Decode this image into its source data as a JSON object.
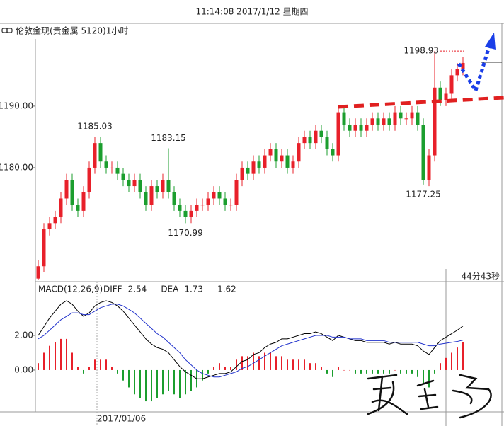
{
  "header": {
    "time": "11:14:08 2017/1/12 星期四"
  },
  "countdown": "44分43秒",
  "chart_data": [
    {
      "type": "candlestick",
      "title": "伦敦金现(贵金属 5120)1小时",
      "categories": [
        null,
        null,
        null,
        null,
        null,
        null,
        null,
        null,
        null,
        null,
        "2017/01/06",
        null,
        null,
        null,
        null,
        null,
        null,
        null,
        null,
        null,
        null,
        null,
        null,
        null,
        null,
        null,
        null,
        null,
        null,
        null,
        null,
        null,
        null,
        null,
        null,
        null,
        null,
        null,
        null,
        null,
        null,
        null,
        null,
        null,
        null,
        null,
        null,
        null,
        null,
        null,
        null,
        null,
        null,
        null,
        null,
        null,
        null,
        null,
        null,
        null,
        null,
        null,
        null,
        null,
        null,
        null,
        null,
        null,
        null,
        null,
        null,
        null,
        null,
        null,
        null,
        null
      ],
      "open": [
        1162,
        1164,
        1170,
        1171,
        1172,
        1175,
        1178,
        1174,
        1173,
        1176,
        1180,
        1184,
        1181,
        1180,
        1180,
        1179,
        1178,
        1177,
        1178,
        1176,
        1174,
        1177,
        1176,
        1178,
        1176,
        1174,
        1173,
        1172,
        1173,
        1174,
        1174,
        1175,
        1176,
        1175,
        1174,
        1174,
        1178,
        1180,
        1179,
        1181,
        1180,
        1182,
        1183,
        1181,
        1182,
        1180,
        1181,
        1184,
        1185,
        1184,
        1186,
        1185,
        1183,
        1182,
        1189,
        1187,
        1186,
        1187,
        1186,
        1187,
        1188,
        1187,
        1188,
        1187,
        1189,
        1188,
        1188,
        1189,
        1187,
        1178,
        1182,
        1193,
        1191,
        1192,
        1195,
        1196
      ],
      "high": [
        1165,
        1171,
        1172,
        1173,
        1176,
        1179,
        1179,
        1175,
        1177,
        1181,
        1185.03,
        1185,
        1182,
        1181,
        1181,
        1180,
        1179,
        1179,
        1179,
        1177,
        1178,
        1178,
        1179,
        1183.15,
        1177,
        1175,
        1174,
        1174,
        1175,
        1175,
        1176,
        1177,
        1177,
        1176,
        1175,
        1179,
        1181,
        1181,
        1182,
        1182,
        1183,
        1184,
        1184,
        1183,
        1183,
        1182,
        1185,
        1186,
        1186,
        1187,
        1187,
        1186,
        1184,
        1190,
        1190,
        1188,
        1188,
        1188,
        1188,
        1189,
        1189,
        1189,
        1189,
        1190,
        1190,
        1189,
        1190,
        1190,
        1188,
        1183,
        1198.93,
        1194,
        1193,
        1196,
        1197,
        1198
      ],
      "low": [
        1161.8,
        1163,
        1169,
        1170,
        1171,
        1174,
        1173,
        1172,
        1172,
        1175,
        1179,
        1180,
        1179,
        1179,
        1178,
        1177,
        1176,
        1176,
        1175,
        1173,
        1173,
        1175,
        1175,
        1175,
        1173,
        1172,
        1170.99,
        1171,
        1172,
        1173,
        1173,
        1174,
        1174,
        1173,
        1173,
        1173,
        1177,
        1178,
        1178,
        1179,
        1179,
        1181,
        1180,
        1180,
        1179,
        1179,
        1180,
        1183,
        1183,
        1183,
        1184,
        1182,
        1181,
        1181,
        1186,
        1185,
        1185,
        1185,
        1185,
        1186,
        1186,
        1186,
        1186,
        1186,
        1187,
        1187,
        1187,
        1186,
        1177.25,
        1177,
        1181,
        1190,
        1190,
        1191,
        1194,
        1195
      ],
      "close": [
        1164,
        1170,
        1171,
        1172,
        1175,
        1178,
        1174,
        1173,
        1176,
        1180,
        1184,
        1181,
        1180,
        1180,
        1179,
        1178,
        1177,
        1178,
        1176,
        1174,
        1177,
        1176,
        1178,
        1176,
        1174,
        1173,
        1172,
        1173,
        1174,
        1174,
        1175,
        1176,
        1175,
        1174,
        1174,
        1178,
        1180,
        1179,
        1181,
        1180,
        1182,
        1183,
        1181,
        1182,
        1180,
        1181,
        1184,
        1185,
        1184,
        1186,
        1185,
        1183,
        1182,
        1189,
        1187,
        1186,
        1187,
        1186,
        1187,
        1188,
        1187,
        1188,
        1187,
        1189,
        1188,
        1188,
        1189,
        1187,
        1178,
        1182,
        1193,
        1191,
        1192,
        1195,
        1196,
        1197
      ],
      "up_color": "#e8202a",
      "down_color": "#1b9e2e",
      "ylim": [
        1161.5,
        1200.9
      ],
      "yticks": [
        {
          "value": 1180,
          "label": "1180.00"
        },
        {
          "value": 1190,
          "label": "1190.00"
        }
      ]
    },
    {
      "type": "macd",
      "title": "MACD(12,26,9)",
      "series": [
        {
          "name": "DIFF",
          "color": "#000000",
          "values": [
            2.0,
            2.5,
            3.0,
            3.4,
            3.8,
            4.0,
            3.8,
            3.4,
            3.1,
            3.3,
            3.7,
            3.9,
            4.0,
            3.9,
            3.7,
            3.4,
            3.0,
            2.6,
            2.2,
            1.8,
            1.5,
            1.3,
            1.2,
            1.0,
            0.6,
            0.2,
            -0.1,
            -0.3,
            -0.5,
            -0.5,
            -0.4,
            -0.3,
            -0.2,
            -0.2,
            -0.1,
            0.2,
            0.5,
            0.6,
            0.9,
            1.0,
            1.3,
            1.5,
            1.6,
            1.8,
            1.8,
            1.9,
            2.0,
            2.1,
            2.1,
            2.2,
            2.1,
            1.9,
            1.7,
            2.0,
            1.9,
            1.8,
            1.7,
            1.7,
            1.6,
            1.6,
            1.6,
            1.6,
            1.5,
            1.6,
            1.5,
            1.5,
            1.5,
            1.4,
            1.1,
            0.9,
            1.3,
            1.7,
            1.9,
            2.1,
            2.3,
            2.54
          ]
        },
        {
          "name": "DEA",
          "color": "#2233cc",
          "values": [
            1.8,
            2.0,
            2.3,
            2.6,
            2.9,
            3.1,
            3.3,
            3.3,
            3.2,
            3.2,
            3.4,
            3.6,
            3.7,
            3.8,
            3.8,
            3.7,
            3.5,
            3.3,
            3.0,
            2.7,
            2.4,
            2.1,
            1.9,
            1.6,
            1.3,
            1.0,
            0.6,
            0.3,
            0.0,
            -0.2,
            -0.3,
            -0.4,
            -0.4,
            -0.3,
            -0.2,
            -0.1,
            0.1,
            0.2,
            0.4,
            0.6,
            0.8,
            1.0,
            1.2,
            1.4,
            1.5,
            1.6,
            1.7,
            1.8,
            1.9,
            2.0,
            2.0,
            2.0,
            1.9,
            1.9,
            1.9,
            1.8,
            1.8,
            1.8,
            1.7,
            1.7,
            1.7,
            1.7,
            1.6,
            1.6,
            1.6,
            1.6,
            1.6,
            1.6,
            1.5,
            1.4,
            1.4,
            1.5,
            1.55,
            1.6,
            1.65,
            1.73
          ]
        }
      ],
      "hist": [
        0.4,
        1.0,
        1.4,
        1.6,
        1.8,
        1.8,
        1.0,
        0.2,
        -0.2,
        0.2,
        0.6,
        0.6,
        0.6,
        0.2,
        -0.2,
        -0.6,
        -1.0,
        -1.4,
        -1.6,
        -1.8,
        -1.8,
        -1.6,
        -1.4,
        -1.2,
        -1.4,
        -1.6,
        -1.4,
        -1.2,
        -1.0,
        -0.6,
        -0.2,
        0.2,
        0.4,
        0.2,
        0.2,
        0.6,
        0.8,
        0.8,
        1.0,
        0.8,
        1.0,
        1.0,
        0.8,
        0.8,
        0.6,
        0.6,
        0.6,
        0.6,
        0.4,
        0.4,
        0.2,
        -0.2,
        -0.4,
        0.2,
        0.0,
        0.0,
        -0.2,
        -0.2,
        -0.2,
        -0.2,
        -0.2,
        -0.2,
        -0.2,
        0.0,
        -0.2,
        -0.2,
        -0.2,
        -0.4,
        -0.8,
        -1.0,
        -0.2,
        0.4,
        0.7,
        1.0,
        1.3,
        1.62
      ],
      "hist_up_color": "#e8202a",
      "hist_down_color": "#1b9e2e",
      "ylim": [
        -2.41,
        5.02
      ],
      "yticks": [
        {
          "value": 2,
          "label": "2.00"
        },
        {
          "value": 0,
          "label": "0.00"
        }
      ]
    }
  ]
}
